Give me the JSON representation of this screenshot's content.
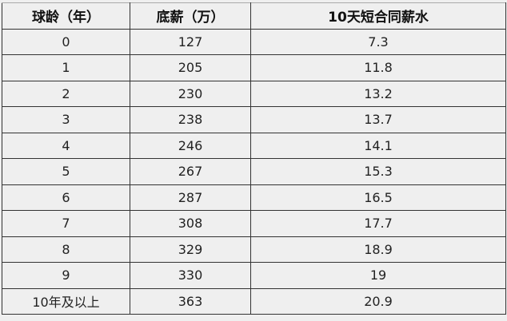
{
  "table": {
    "headers": [
      "球龄（年）",
      "底薪（万）",
      "10天短合同薪水"
    ],
    "rows": [
      [
        "0",
        "127",
        "7.3"
      ],
      [
        "1",
        "205",
        "11.8"
      ],
      [
        "2",
        "230",
        "13.2"
      ],
      [
        "3",
        "238",
        "13.7"
      ],
      [
        "4",
        "246",
        "14.1"
      ],
      [
        "5",
        "267",
        "15.3"
      ],
      [
        "6",
        "287",
        "16.5"
      ],
      [
        "7",
        "308",
        "17.7"
      ],
      [
        "8",
        "329",
        "18.9"
      ],
      [
        "9",
        "330",
        "19"
      ],
      [
        "10年及以上",
        "363",
        "20.9"
      ]
    ]
  }
}
